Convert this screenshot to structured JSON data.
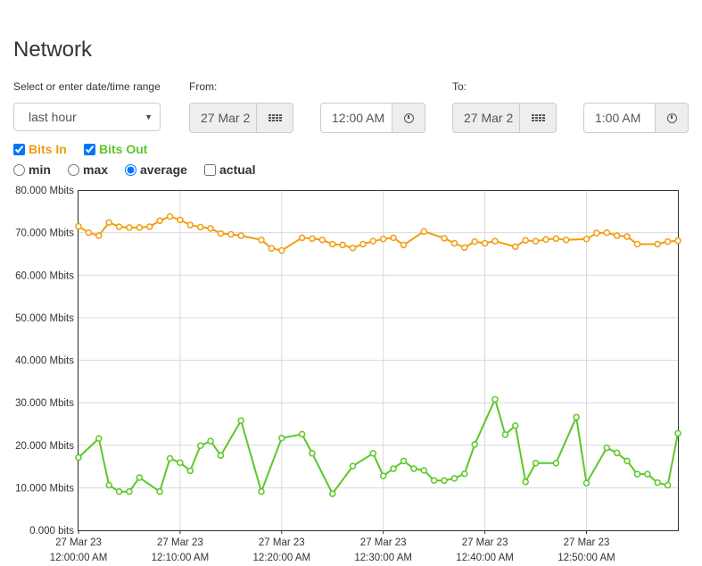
{
  "page": {
    "title": "Network"
  },
  "range": {
    "label": "Select or enter date/time range",
    "selected": "last hour"
  },
  "from": {
    "label": "From:",
    "date": "27 Mar 2",
    "time": "12:00 AM"
  },
  "to": {
    "label": "To:",
    "date": "27 Mar 2",
    "time": "1:00 AM"
  },
  "series_toggles": {
    "bits_in": "Bits In",
    "bits_out": "Bits Out"
  },
  "aggregation": {
    "min": "min",
    "max": "max",
    "average": "average",
    "actual": "actual"
  },
  "colors": {
    "bits_in": "#f39c12",
    "bits_out": "#5bc827"
  },
  "chart_data": {
    "type": "line",
    "ylim": [
      0,
      80
    ],
    "y_ticks": [
      "0.000 bits",
      "10.000 Mbits",
      "20.000 Mbits",
      "30.000 Mbits",
      "40.000 Mbits",
      "50.000 Mbits",
      "60.000 Mbits",
      "70.000 Mbits",
      "80.000 Mbits"
    ],
    "xlim": [
      0,
      59
    ],
    "x_ticks": [
      {
        "min": 0,
        "date": "27 Mar 23",
        "time": "12:00:00 AM"
      },
      {
        "min": 10,
        "date": "27 Mar 23",
        "time": "12:10:00 AM"
      },
      {
        "min": 20,
        "date": "27 Mar 23",
        "time": "12:20:00 AM"
      },
      {
        "min": 30,
        "date": "27 Mar 23",
        "time": "12:30:00 AM"
      },
      {
        "min": 40,
        "date": "27 Mar 23",
        "time": "12:40:00 AM"
      },
      {
        "min": 50,
        "date": "27 Mar 23",
        "time": "12:50:00 AM"
      }
    ],
    "series": [
      {
        "name": "Bits In",
        "points": [
          [
            0,
            71.5
          ],
          [
            1,
            70.0
          ],
          [
            2,
            69.3
          ],
          [
            3,
            72.4
          ],
          [
            4,
            71.4
          ],
          [
            5,
            71.2
          ],
          [
            6,
            71.2
          ],
          [
            7,
            71.4
          ],
          [
            8,
            72.8
          ],
          [
            9,
            73.8
          ],
          [
            10,
            73.0
          ],
          [
            11,
            71.8
          ],
          [
            12,
            71.3
          ],
          [
            13,
            71.0
          ],
          [
            14,
            69.8
          ],
          [
            15,
            69.6
          ],
          [
            16,
            69.3
          ],
          [
            18,
            68.3
          ],
          [
            19,
            66.3
          ],
          [
            20,
            65.8
          ],
          [
            22,
            68.8
          ],
          [
            23,
            68.6
          ],
          [
            24,
            68.3
          ],
          [
            25,
            67.3
          ],
          [
            26,
            67.1
          ],
          [
            27,
            66.4
          ],
          [
            28,
            67.3
          ],
          [
            29,
            68.0
          ],
          [
            30,
            68.5
          ],
          [
            31,
            68.8
          ],
          [
            32,
            67.1
          ],
          [
            34,
            70.3
          ],
          [
            36,
            68.7
          ],
          [
            37,
            67.5
          ],
          [
            38,
            66.5
          ],
          [
            39,
            67.9
          ],
          [
            40,
            67.5
          ],
          [
            41,
            68.0
          ],
          [
            43,
            66.7
          ],
          [
            44,
            68.2
          ],
          [
            45,
            68.0
          ],
          [
            46,
            68.4
          ],
          [
            47,
            68.6
          ],
          [
            48,
            68.3
          ],
          [
            50,
            68.5
          ],
          [
            51,
            69.9
          ],
          [
            52,
            70.0
          ],
          [
            53,
            69.3
          ],
          [
            54,
            69.1
          ],
          [
            55,
            67.3
          ],
          [
            57,
            67.3
          ],
          [
            58,
            67.9
          ],
          [
            59,
            68.1
          ]
        ]
      },
      {
        "name": "Bits Out",
        "points": [
          [
            0,
            17.1
          ],
          [
            2,
            21.6
          ],
          [
            3,
            10.6
          ],
          [
            4,
            9.1
          ],
          [
            5,
            9.1
          ],
          [
            6,
            12.4
          ],
          [
            8,
            9.1
          ],
          [
            9,
            16.9
          ],
          [
            10,
            15.9
          ],
          [
            11,
            14.0
          ],
          [
            12,
            19.9
          ],
          [
            13,
            21.0
          ],
          [
            14,
            17.6
          ],
          [
            16,
            25.8
          ],
          [
            18,
            9.1
          ],
          [
            20,
            21.7
          ],
          [
            22,
            22.6
          ],
          [
            23,
            18.1
          ],
          [
            25,
            8.6
          ],
          [
            27,
            15.1
          ],
          [
            29,
            18.1
          ],
          [
            30,
            12.8
          ],
          [
            31,
            14.5
          ],
          [
            32,
            16.3
          ],
          [
            33,
            14.5
          ],
          [
            34,
            14.1
          ],
          [
            35,
            11.7
          ],
          [
            36,
            11.7
          ],
          [
            37,
            12.2
          ],
          [
            38,
            13.3
          ],
          [
            39,
            20.2
          ],
          [
            41,
            30.8
          ],
          [
            42,
            22.5
          ],
          [
            43,
            24.6
          ],
          [
            44,
            11.4
          ],
          [
            45,
            15.8
          ],
          [
            47,
            15.8
          ],
          [
            49,
            26.6
          ],
          [
            50,
            11.1
          ],
          [
            52,
            19.4
          ],
          [
            53,
            18.2
          ],
          [
            54,
            16.3
          ],
          [
            55,
            13.2
          ],
          [
            56,
            13.2
          ],
          [
            57,
            11.2
          ],
          [
            58,
            10.6
          ],
          [
            59,
            22.8
          ]
        ]
      }
    ]
  }
}
